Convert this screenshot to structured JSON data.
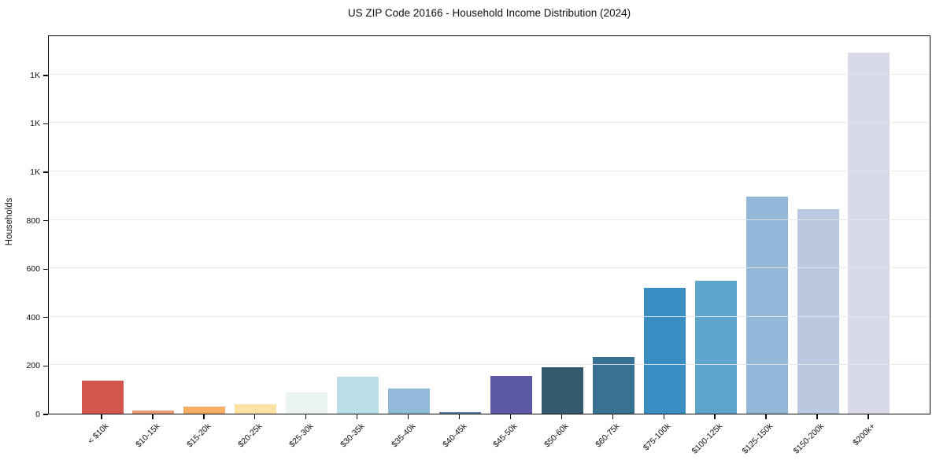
{
  "chart_data": {
    "type": "bar",
    "title": "US ZIP Code 20166 - Household Income Distribution (2024)",
    "xlabel": "",
    "ylabel": "Households",
    "categories": [
      "< $10k",
      "$10-15k",
      "$15-20k",
      "$20-25k",
      "$25-30k",
      "$30-35k",
      "$35-40k",
      "$40-45k",
      "$45-50k",
      "$50-60k",
      "$60-75k",
      "$75-100k",
      "$100-125k",
      "$125-150k",
      "$150-200k",
      "$200k+"
    ],
    "values": [
      135,
      12,
      30,
      38,
      88,
      153,
      105,
      8,
      157,
      193,
      235,
      520,
      550,
      897,
      845,
      1490
    ],
    "bar_colors": [
      "#d4564e",
      "#ea9a72",
      "#f7ae67",
      "#fce2a2",
      "#eaf4f2",
      "#bbdfe8",
      "#90bad8",
      "#5e7ea7",
      "#5c58a6",
      "#365a6d",
      "#387191",
      "#3a8ec2",
      "#5ea5cb",
      "#92b8d8",
      "#bac9e0",
      "#d8dae8"
    ],
    "ylim": [
      0,
      1565
    ],
    "ytick_values": [
      0,
      200,
      400,
      600,
      800,
      1000,
      1200,
      1400
    ],
    "ytick_labels": [
      "0",
      "200",
      "400",
      "600",
      "800",
      "1K",
      "1K",
      "1K"
    ],
    "grid": "horizontal-only",
    "legend": "none",
    "xtick_rotation_deg": 45
  },
  "style": {
    "background": "#ffffff",
    "spine_color": "#0a0a0a",
    "grid_color": "#e6e6e6",
    "text_color": "#111111"
  }
}
